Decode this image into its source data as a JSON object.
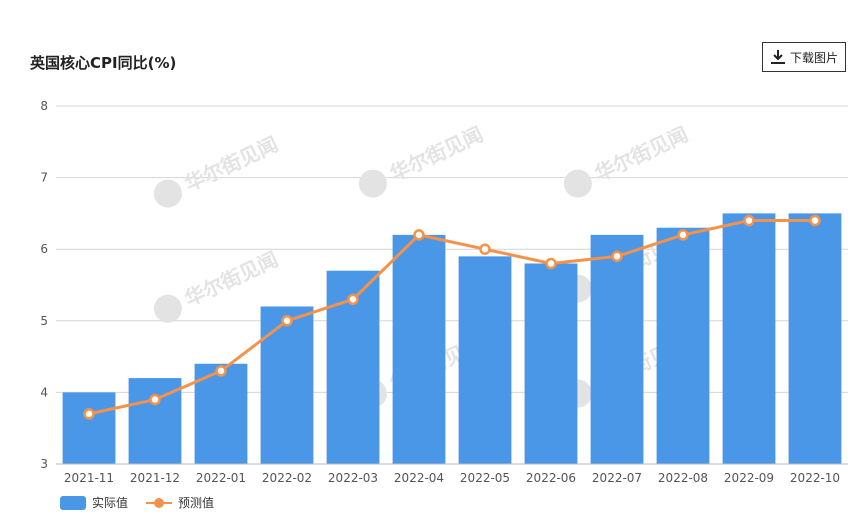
{
  "header": {
    "title": "英国核心CPI同比(%)",
    "download_label": "下载图片"
  },
  "watermark_text": "华尔街见闻",
  "colors": {
    "bar": "#4a97e8",
    "line": "#f5924a",
    "grid": "#d6d6d6",
    "watermark": "#e3e3e3"
  },
  "chart_data": {
    "type": "bar",
    "title": "英国核心CPI同比(%)",
    "categories": [
      "2021-11",
      "2021-12",
      "2022-01",
      "2022-02",
      "2022-03",
      "2022-04",
      "2022-05",
      "2022-06",
      "2022-07",
      "2022-08",
      "2022-09",
      "2022-10"
    ],
    "series": [
      {
        "name": "实际值",
        "type": "bar",
        "values": [
          4.0,
          4.2,
          4.4,
          5.2,
          5.7,
          6.2,
          5.9,
          5.8,
          6.2,
          6.3,
          6.5,
          6.5
        ]
      },
      {
        "name": "预测值",
        "type": "line",
        "values": [
          3.7,
          3.9,
          4.3,
          5.0,
          5.3,
          6.2,
          6.0,
          5.8,
          5.9,
          6.2,
          6.4,
          6.4
        ]
      }
    ],
    "ylim": [
      3,
      8
    ],
    "yticks": [
      3,
      4,
      5,
      6,
      7,
      8
    ],
    "grid": true,
    "legend_position": "bottom-left"
  }
}
